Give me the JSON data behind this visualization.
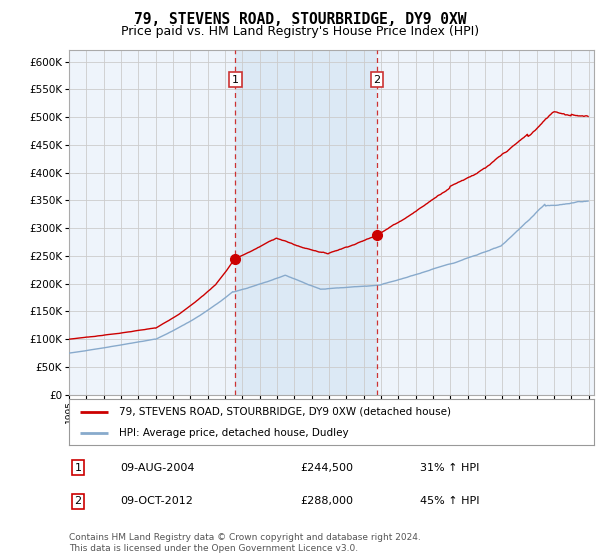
{
  "title": "79, STEVENS ROAD, STOURBRIDGE, DY9 0XW",
  "subtitle": "Price paid vs. HM Land Registry's House Price Index (HPI)",
  "legend_line1": "79, STEVENS ROAD, STOURBRIDGE, DY9 0XW (detached house)",
  "legend_line2": "HPI: Average price, detached house, Dudley",
  "transaction1_date": "09-AUG-2004",
  "transaction1_price": "£244,500",
  "transaction1_hpi": "31% ↑ HPI",
  "transaction2_date": "09-OCT-2012",
  "transaction2_price": "£288,000",
  "transaction2_hpi": "45% ↑ HPI",
  "footer": "Contains HM Land Registry data © Crown copyright and database right 2024.\nThis data is licensed under the Open Government Licence v3.0.",
  "vline1_x": 2004.6,
  "vline2_x": 2012.77,
  "marker1_x": 2004.6,
  "marker1_y": 244500,
  "marker2_x": 2012.77,
  "marker2_y": 288000,
  "ylim": [
    0,
    620000
  ],
  "xlim_start": 1995.0,
  "xlim_end": 2025.3,
  "red_color": "#cc0000",
  "blue_color": "#88aacc",
  "vline_color": "#cc3333",
  "background_color": "#ffffff",
  "plot_bg_color": "#eef4fb",
  "shaded_bg_color": "#dce9f5",
  "grid_color": "#cccccc",
  "title_fontsize": 10.5,
  "subtitle_fontsize": 9
}
